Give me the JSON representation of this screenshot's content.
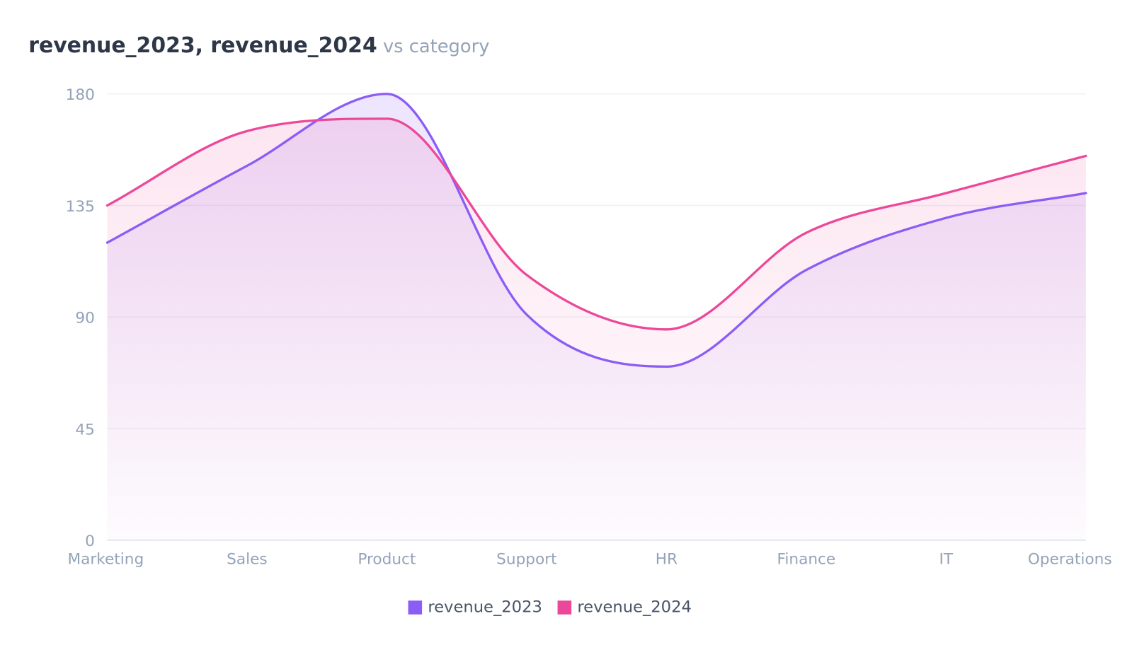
{
  "chart_data": {
    "type": "area",
    "title": "revenue_2023, revenue_2024",
    "subtitle": "vs category",
    "xlabel": "",
    "ylabel": "",
    "categories": [
      "Marketing",
      "Sales",
      "Product",
      "Support",
      "HR",
      "Finance",
      "IT",
      "Operations"
    ],
    "series": [
      {
        "name": "revenue_2023",
        "color": "#8b5cf6",
        "values": [
          120,
          151,
          180,
          91,
          70,
          109,
          130,
          140
        ]
      },
      {
        "name": "revenue_2024",
        "color": "#ec4899",
        "values": [
          135,
          165,
          170,
          107,
          85,
          124,
          140,
          155
        ]
      }
    ],
    "ylim": [
      0,
      180
    ],
    "yticks": [
      "0",
      "45",
      "90",
      "135",
      "180"
    ],
    "grid": true,
    "legend": "bottom",
    "curve": "smooth"
  }
}
